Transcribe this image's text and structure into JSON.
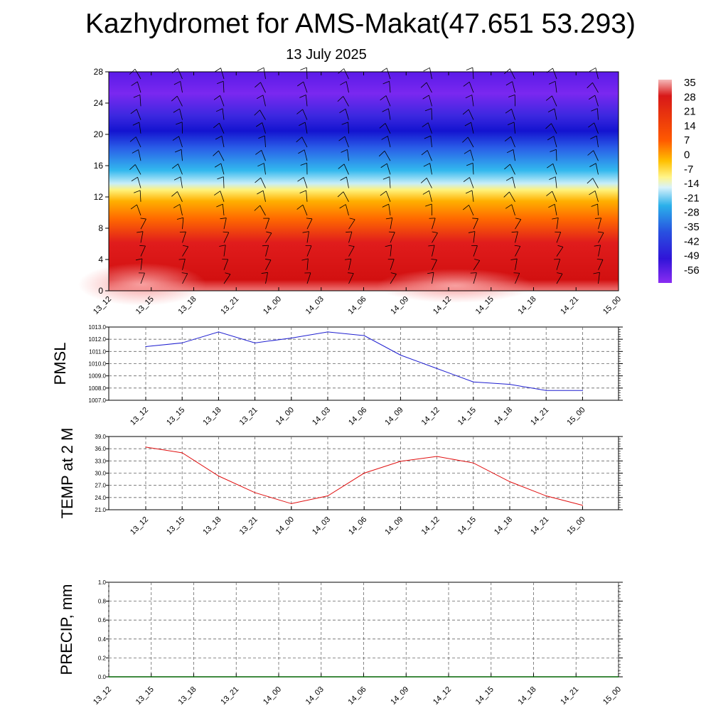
{
  "title": "Kazhydromet for AMS-Makat(47.651 53.293)",
  "subtitle": "13 July 2025",
  "colors": {
    "pmsl_line": "#1f1fd0",
    "temp_line": "#e01010",
    "precip_line": "#006400"
  },
  "chart_data": [
    {
      "type": "heatmap",
      "title": "",
      "ylabel": "",
      "ylim": [
        0,
        28
      ],
      "y_ticks": [
        "0",
        "4",
        "8",
        "12",
        "16",
        "20",
        "24",
        "28"
      ],
      "x_ticks": [
        "13_12",
        "13_15",
        "13_18",
        "13_21",
        "14_00",
        "14_03",
        "14_06",
        "14_09",
        "14_12",
        "14_15",
        "14_18",
        "14_21",
        "15_00"
      ],
      "colorbar_labels": [
        "35",
        "28",
        "21",
        "14",
        "7",
        "0",
        "-7",
        "-14",
        "-21",
        "-28",
        "-35",
        "-42",
        "-49",
        "-56"
      ],
      "note_wind_barbs": true
    },
    {
      "type": "line",
      "ylabel": "PMSL",
      "ylim": [
        1007.0,
        1013.0
      ],
      "y_ticks": [
        "1013.0",
        "1012.0",
        "1011.0",
        "1010.0",
        "1009.0",
        "1008.0",
        "1007.0"
      ],
      "x": [
        "13_12",
        "13_15",
        "13_18",
        "13_21",
        "14_00",
        "14_03",
        "14_06",
        "14_09",
        "14_12",
        "14_15",
        "14_18",
        "14_21",
        "15_00"
      ],
      "values": [
        1011.4,
        1011.7,
        1012.6,
        1011.7,
        1012.1,
        1012.6,
        1012.3,
        1010.7,
        1009.6,
        1008.5,
        1008.3,
        1007.8,
        1007.8
      ]
    },
    {
      "type": "line",
      "ylabel": "TEMP at 2 M",
      "ylim": [
        21.0,
        39.0
      ],
      "y_ticks": [
        "39.0",
        "36.0",
        "33.0",
        "30.0",
        "27.0",
        "24.0",
        "21.0"
      ],
      "x": [
        "13_12",
        "13_15",
        "13_18",
        "13_21",
        "14_00",
        "14_03",
        "14_06",
        "14_09",
        "14_12",
        "14_15",
        "14_18",
        "14_21",
        "15_00"
      ],
      "values": [
        36.4,
        35.0,
        29.3,
        25.2,
        22.5,
        24.4,
        30.0,
        32.9,
        34.1,
        32.5,
        27.9,
        24.4,
        22.1
      ]
    },
    {
      "type": "line",
      "ylabel": "PRECIP, mm",
      "ylim": [
        0.0,
        1.0
      ],
      "y_ticks": [
        "1.0",
        "0.8",
        "0.6",
        "0.4",
        "0.2",
        "0.0"
      ],
      "x": [
        "13_12",
        "13_15",
        "13_18",
        "13_21",
        "14_00",
        "14_03",
        "14_06",
        "14_09",
        "14_12",
        "14_15",
        "14_18",
        "14_21",
        "15_00"
      ],
      "values": [
        0,
        0,
        0,
        0,
        0,
        0,
        0,
        0,
        0,
        0,
        0,
        0,
        0
      ]
    }
  ]
}
